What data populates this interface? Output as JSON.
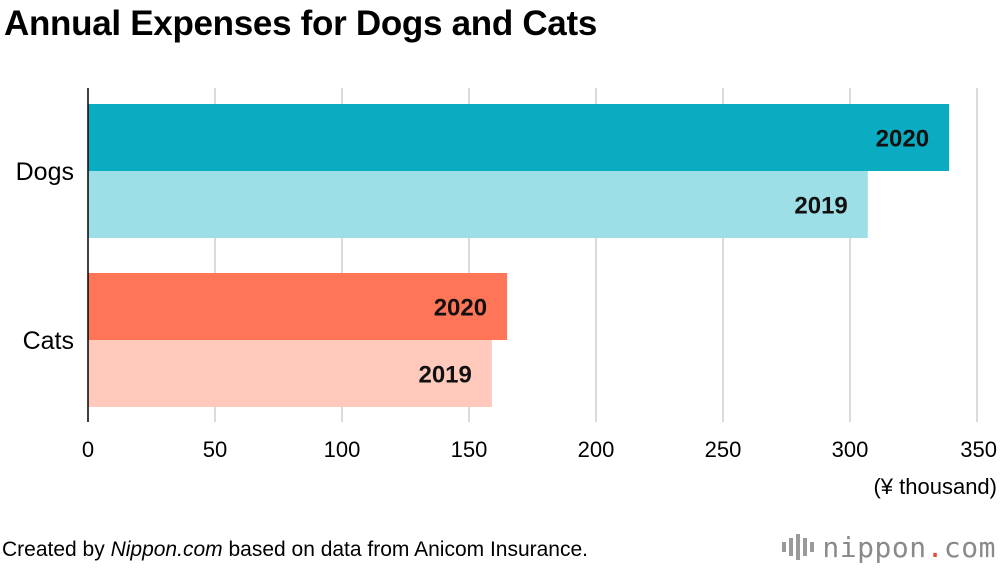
{
  "chart_data": {
    "type": "bar",
    "orientation": "horizontal",
    "title": "Annual Expenses for Dogs and Cats",
    "unit_label": "(¥ thousand)",
    "categories": [
      "Dogs",
      "Cats"
    ],
    "series": [
      {
        "name": "2020",
        "values": [
          339,
          165
        ],
        "colors": [
          "#09acc1",
          "#ff7558"
        ]
      },
      {
        "name": "2019",
        "values": [
          307,
          159
        ],
        "colors": [
          "#9ddfe7",
          "#ffc9bc"
        ]
      }
    ],
    "xlim": [
      0,
      350
    ],
    "xticks": [
      0,
      50,
      100,
      150,
      200,
      250,
      300,
      350
    ],
    "grid": true
  },
  "footer": {
    "credit_prefix": "Created by ",
    "credit_source": "Nippon.com",
    "credit_suffix": " based on data from Anicom Insurance.",
    "brand_name": "nippon",
    "brand_dot": ".",
    "brand_tld": "com"
  },
  "colors": {
    "gridline": "#cfcfcf",
    "axis": "#000000",
    "brand_gray": "#8a8a8a",
    "brand_accent": "#e84a3c"
  }
}
